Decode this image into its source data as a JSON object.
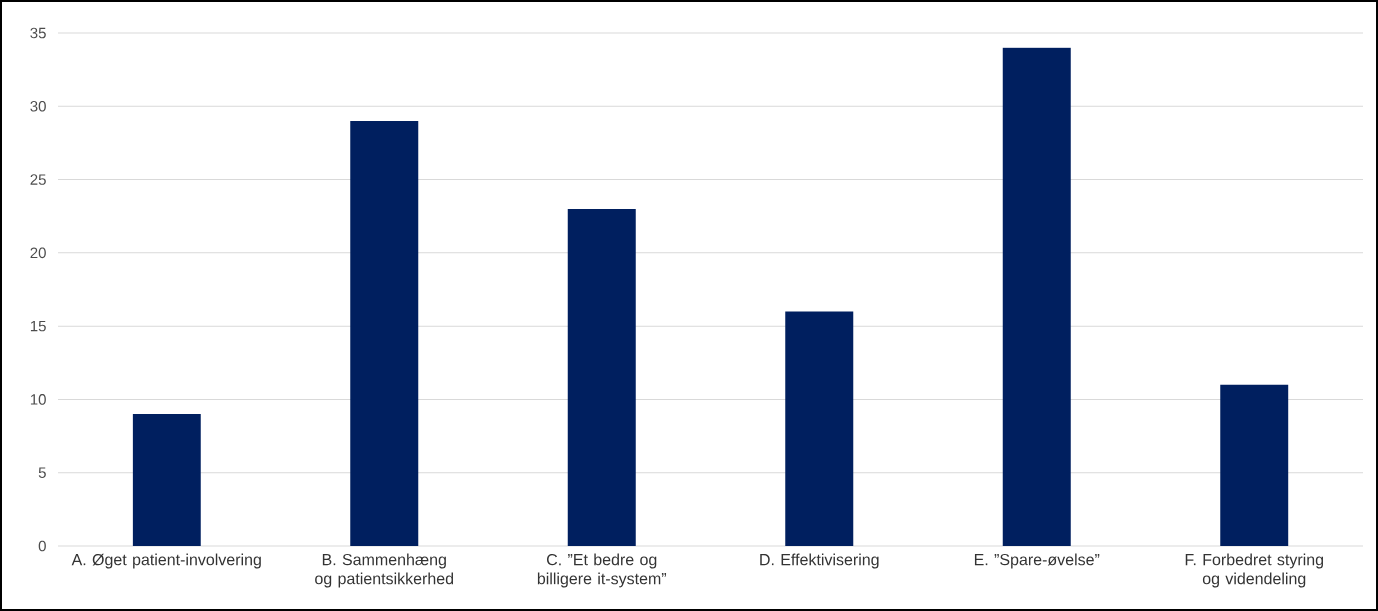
{
  "chart_data": {
    "type": "bar",
    "categories": [
      "A. Øget patient-involvering",
      "B. Sammenhæng og patientsikkerhed",
      "C. ”Et bedre og billigere it-system”",
      "D. Effektivisering",
      "E. ”Spare-øvelse”",
      "F. Forbedret styring og videndeling"
    ],
    "values": [
      9,
      29,
      23,
      16,
      34,
      11
    ],
    "color": "#001f5f",
    "ylim": [
      0,
      35
    ],
    "yticks": [
      0,
      5,
      10,
      15,
      20,
      25,
      30,
      35
    ],
    "grid": "y"
  }
}
